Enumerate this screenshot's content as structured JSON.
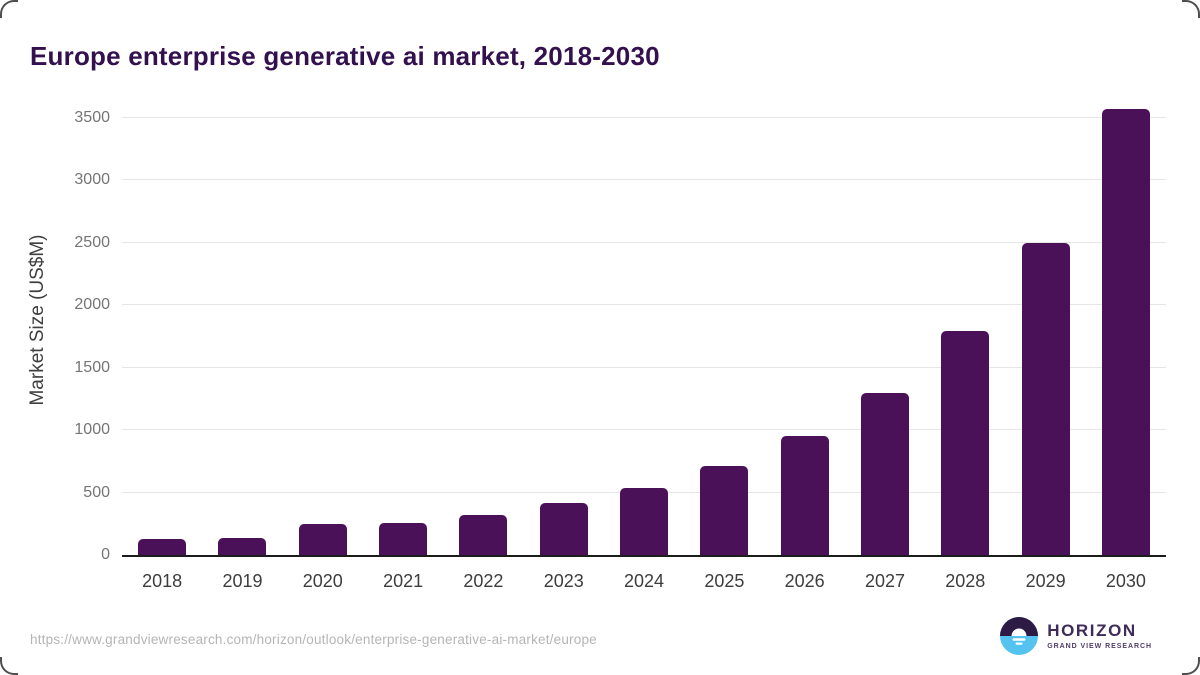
{
  "page": {
    "title": "Europe enterprise generative ai market, 2018-2030",
    "source_url": "https://www.grandviewresearch.com/horizon/outlook/enterprise-generative-ai-market/europe"
  },
  "branding": {
    "logo_name": "HORIZON",
    "logo_subtitle": "GRAND VIEW RESEARCH",
    "logo_icon": "horizon-sunrise-icon",
    "colors": {
      "logo_dark": "#2d1a45",
      "logo_blue": "#55c3ef",
      "logo_text": "#3e2b57"
    }
  },
  "chart_data": {
    "type": "bar",
    "title": "Europe enterprise generative ai market, 2018-2030",
    "categories": [
      "2018",
      "2019",
      "2020",
      "2021",
      "2022",
      "2023",
      "2024",
      "2025",
      "2026",
      "2027",
      "2028",
      "2029",
      "2030"
    ],
    "values": [
      125,
      135,
      250,
      260,
      320,
      420,
      540,
      710,
      950,
      1300,
      1790,
      2500,
      3570
    ],
    "xlabel": "",
    "ylabel": "Market Size (US$M)",
    "ylim": [
      0,
      3500
    ],
    "yticks": [
      0,
      500,
      1000,
      1500,
      2000,
      2500,
      3000,
      3500
    ],
    "grid": true,
    "legend": "none",
    "bar_color": "#4a1158",
    "gridline_color": "#e6e6e6",
    "axis_color": "#1c1c1c",
    "title_color": "#33104e"
  }
}
